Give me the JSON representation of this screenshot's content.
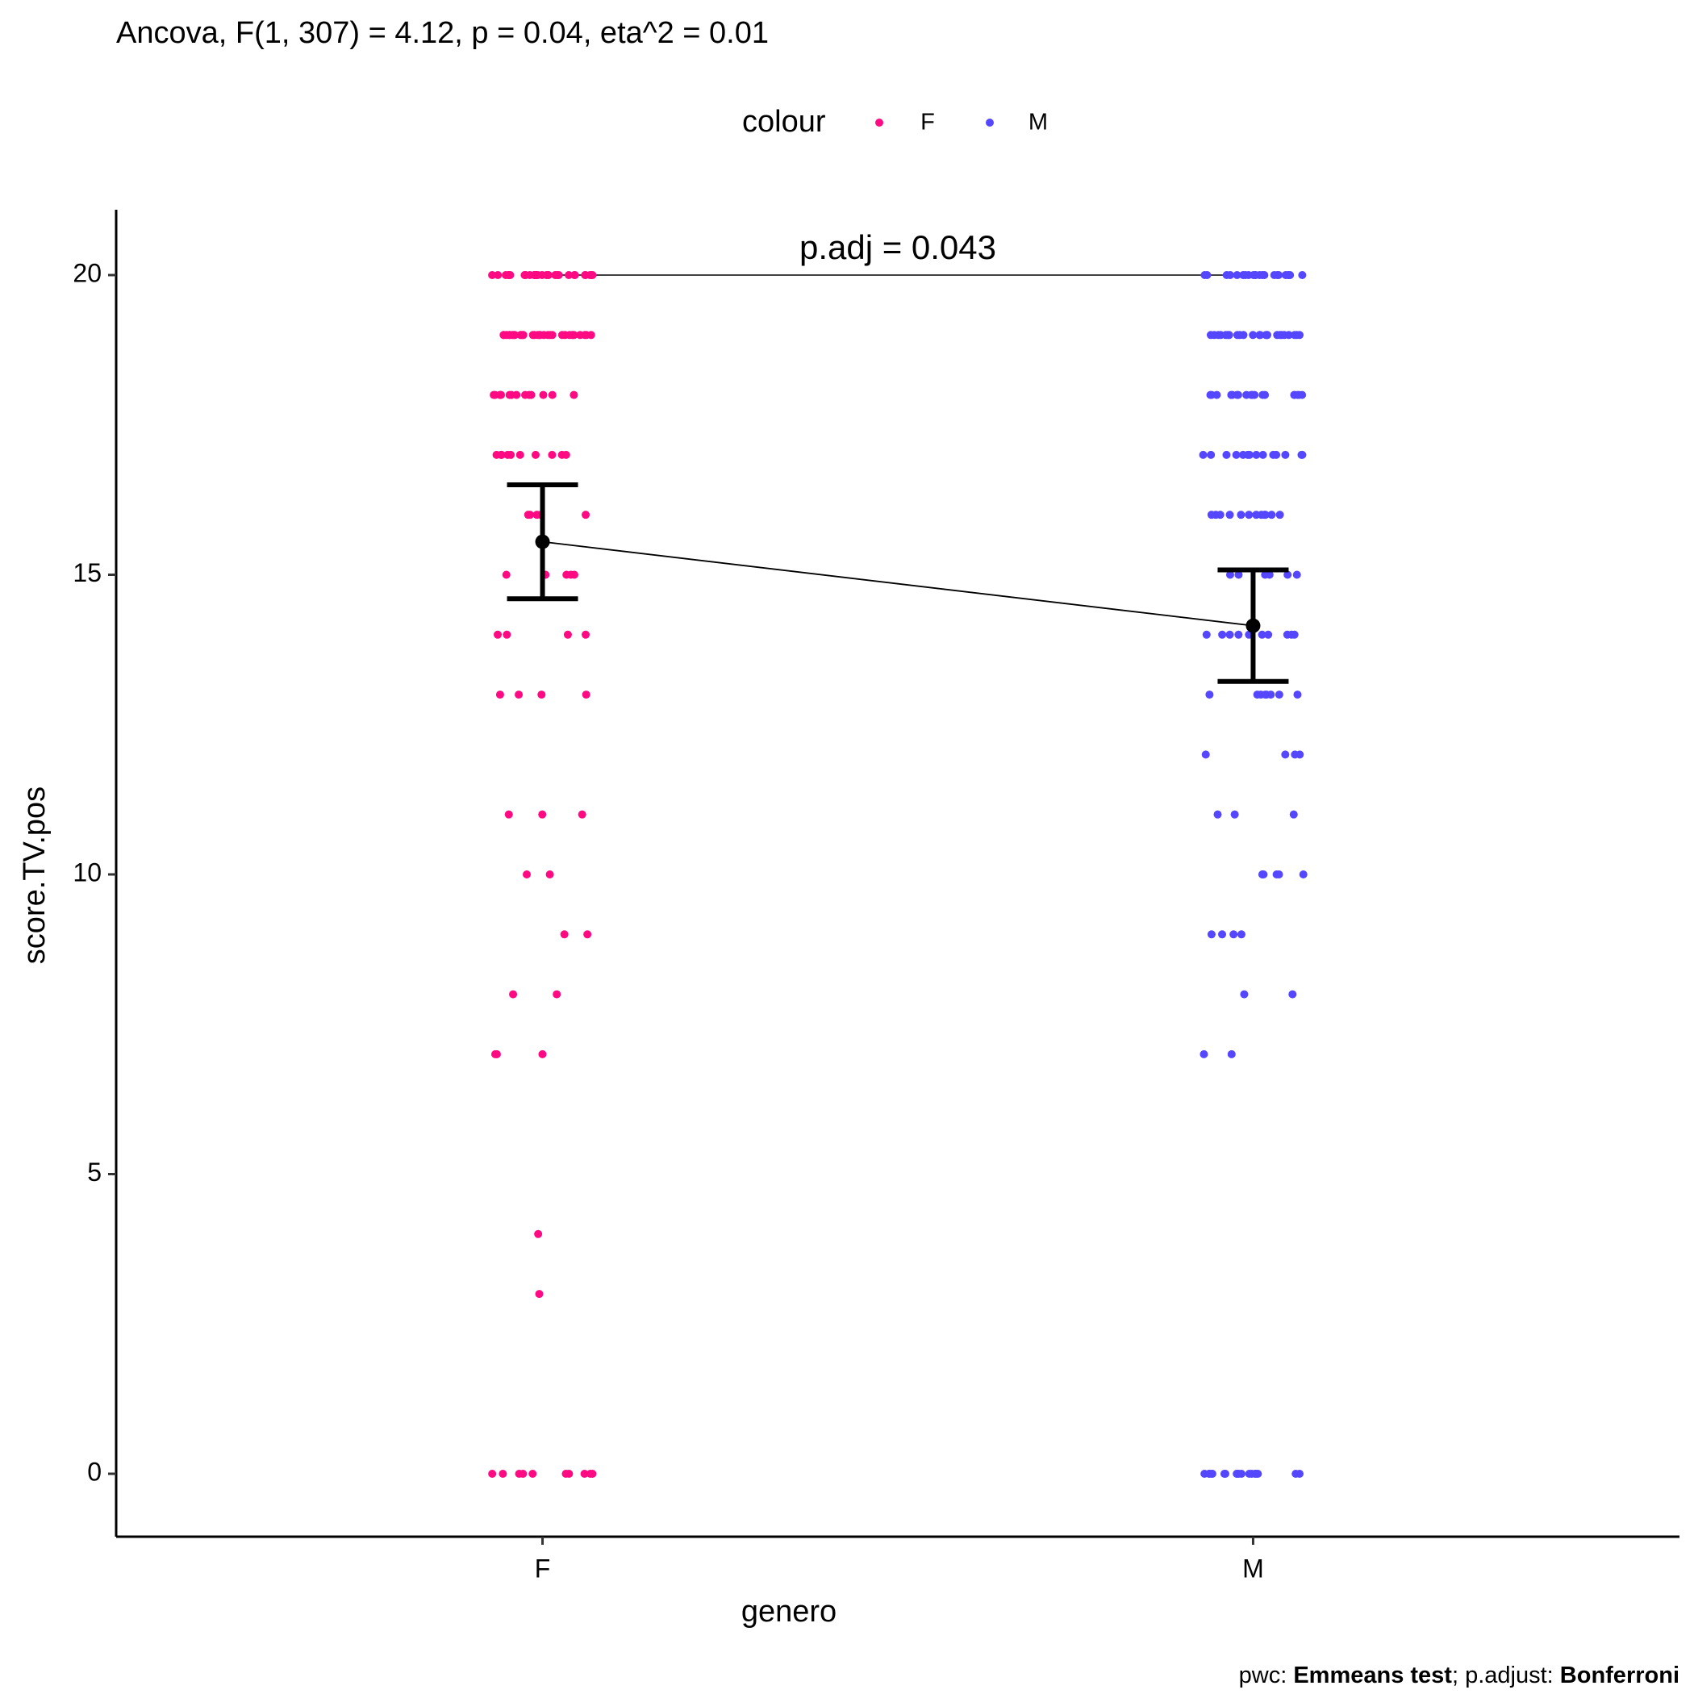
{
  "chart_data": {
    "type": "scatter",
    "title": "Ancova, F(1, 307) = 4.12, p = 0.04, eta^2 = 0.01",
    "legend_title": "colour",
    "x_label": "genero",
    "y_label": "score.TV.pos",
    "caption": [
      "pwc: ",
      "Emmeans test",
      "; p.adjust: ",
      "Bonferroni"
    ],
    "categories": [
      "F",
      "M"
    ],
    "ylim": [
      -1.05,
      21.09
    ],
    "yticks": [
      0,
      5,
      10,
      15,
      20
    ],
    "series": [
      {
        "name": "F",
        "color": "#ff0a82",
        "values": [
          20,
          20,
          20,
          20,
          20,
          20,
          20,
          20,
          20,
          20,
          20,
          20,
          20,
          20,
          20,
          20,
          20,
          20,
          20,
          20,
          20,
          20,
          20,
          20,
          20,
          20,
          20,
          20,
          20,
          20,
          19,
          19,
          19,
          19,
          19,
          19,
          19,
          19,
          19,
          19,
          19,
          19,
          19,
          19,
          19,
          19,
          19,
          19,
          19,
          19,
          19,
          19,
          19,
          19,
          19,
          19,
          19,
          19,
          19,
          19,
          18,
          18,
          18,
          18,
          18,
          18,
          18,
          18,
          18,
          18,
          18,
          18,
          18,
          18,
          17,
          17,
          17,
          17,
          17,
          17,
          17,
          17,
          17,
          17,
          16,
          16,
          16,
          16,
          16,
          15,
          15,
          15,
          15,
          15,
          14,
          14,
          14,
          14,
          13,
          13,
          13,
          13,
          11,
          11,
          11,
          10,
          10,
          9,
          9,
          8,
          8,
          7,
          7,
          7,
          4,
          3,
          0,
          0,
          0,
          0,
          0,
          0,
          0,
          0,
          0,
          0
        ]
      },
      {
        "name": "M",
        "color": "#5447ff",
        "values": [
          20,
          20,
          20,
          20,
          20,
          20,
          20,
          20,
          20,
          20,
          20,
          20,
          20,
          20,
          20,
          20,
          20,
          20,
          20,
          20,
          20,
          20,
          19,
          19,
          19,
          19,
          19,
          19,
          19,
          19,
          19,
          19,
          19,
          19,
          19,
          19,
          19,
          19,
          19,
          19,
          19,
          19,
          19,
          19,
          19,
          19,
          18,
          18,
          18,
          18,
          18,
          18,
          18,
          18,
          18,
          18,
          18,
          18,
          18,
          18,
          18,
          18,
          18,
          18,
          17,
          17,
          17,
          17,
          17,
          17,
          17,
          17,
          17,
          17,
          17,
          17,
          17,
          17,
          16,
          16,
          16,
          16,
          16,
          16,
          16,
          16,
          16,
          16,
          16,
          16,
          15,
          15,
          15,
          15,
          15,
          15,
          14,
          14,
          14,
          14,
          14,
          14,
          14,
          14,
          14,
          14,
          13,
          13,
          13,
          13,
          13,
          13,
          13,
          13,
          12,
          12,
          12,
          12,
          11,
          11,
          11,
          10,
          10,
          10,
          10,
          10,
          10,
          9,
          9,
          9,
          9,
          8,
          8,
          7,
          7,
          0,
          0,
          0,
          0,
          0,
          0,
          0,
          0,
          0,
          0,
          0,
          0,
          0,
          0,
          0,
          0,
          0,
          0
        ]
      }
    ],
    "means": {
      "values": [
        15.55,
        14.15
      ],
      "errors": [
        0.95,
        0.93
      ]
    },
    "bracket": {
      "label": "p.adj = 0.043",
      "y": 20
    }
  }
}
